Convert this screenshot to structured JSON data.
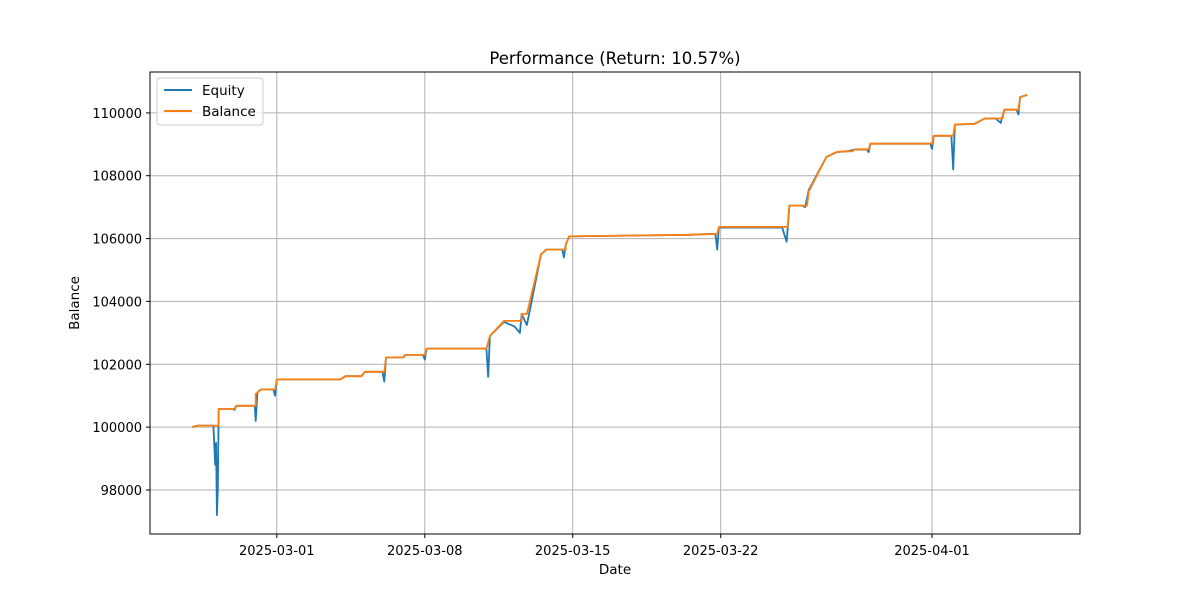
{
  "chart_data": {
    "type": "line",
    "title": "Performance (Return: 10.57%)",
    "xlabel": "Date",
    "ylabel": "Balance",
    "xlim": [
      "2025-02-23",
      "2025-04-08"
    ],
    "ylim": [
      96600,
      111300
    ],
    "x_ticks": [
      "2025-03-01",
      "2025-03-08",
      "2025-03-15",
      "2025-03-22",
      "2025-04-01"
    ],
    "y_ticks": [
      98000,
      100000,
      102000,
      104000,
      106000,
      108000,
      110000
    ],
    "grid": true,
    "legend": "top-left",
    "series": [
      {
        "name": "Equity",
        "color": "#1f77b4",
        "points": [
          [
            "2025-02-25T00:00",
            100000
          ],
          [
            "2025-02-25T06:00",
            100050
          ],
          [
            "2025-02-26T00:00",
            100050
          ],
          [
            "2025-02-26T02:00",
            98800
          ],
          [
            "2025-02-26T03:00",
            99500
          ],
          [
            "2025-02-26T04:00",
            97200
          ],
          [
            "2025-02-26T05:00",
            98000
          ],
          [
            "2025-02-26T06:00",
            100580
          ],
          [
            "2025-02-26T23:00",
            100580
          ],
          [
            "2025-02-27T00:00",
            100550
          ],
          [
            "2025-02-27T02:00",
            100680
          ],
          [
            "2025-02-27T23:00",
            100680
          ],
          [
            "2025-02-28T00:00",
            100200
          ],
          [
            "2025-02-28T02:00",
            101100
          ],
          [
            "2025-02-28T06:00",
            101200
          ],
          [
            "2025-02-28T20:00",
            101200
          ],
          [
            "2025-02-28T22:00",
            101000
          ],
          [
            "2025-03-01T00:00",
            101520
          ],
          [
            "2025-03-04T00:00",
            101520
          ],
          [
            "2025-03-04T06:00",
            101620
          ],
          [
            "2025-03-05T00:00",
            101620
          ],
          [
            "2025-03-05T04:00",
            101760
          ],
          [
            "2025-03-06T00:00",
            101760
          ],
          [
            "2025-03-06T02:00",
            101450
          ],
          [
            "2025-03-06T04:00",
            102220
          ],
          [
            "2025-03-06T23:00",
            102220
          ],
          [
            "2025-03-07T02:00",
            102300
          ],
          [
            "2025-03-07T22:00",
            102300
          ],
          [
            "2025-03-08T00:00",
            102150
          ],
          [
            "2025-03-08T02:00",
            102500
          ],
          [
            "2025-03-10T22:00",
            102500
          ],
          [
            "2025-03-11T00:00",
            101600
          ],
          [
            "2025-03-11T02:00",
            102900
          ],
          [
            "2025-03-11T18:00",
            103350
          ],
          [
            "2025-03-12T06:00",
            103200
          ],
          [
            "2025-03-12T12:00",
            103000
          ],
          [
            "2025-03-12T14:00",
            103600
          ],
          [
            "2025-03-12T20:00",
            103250
          ],
          [
            "2025-03-13T12:00",
            105500
          ],
          [
            "2025-03-13T18:00",
            105650
          ],
          [
            "2025-03-14T12:00",
            105650
          ],
          [
            "2025-03-14T14:00",
            105400
          ],
          [
            "2025-03-14T16:00",
            105800
          ],
          [
            "2025-03-14T20:00",
            106070
          ],
          [
            "2025-03-20T12:00",
            106120
          ],
          [
            "2025-03-21T12:00",
            106150
          ],
          [
            "2025-03-21T18:00",
            106150
          ],
          [
            "2025-03-21T20:00",
            105650
          ],
          [
            "2025-03-21T22:00",
            106350
          ],
          [
            "2025-03-24T22:00",
            106350
          ],
          [
            "2025-03-25T00:00",
            106150
          ],
          [
            "2025-03-25T03:00",
            105900
          ],
          [
            "2025-03-25T06:00",
            107050
          ],
          [
            "2025-03-25T20:00",
            107050
          ],
          [
            "2025-03-26T00:00",
            107000
          ],
          [
            "2025-03-26T04:00",
            107550
          ],
          [
            "2025-03-27T00:00",
            108600
          ],
          [
            "2025-03-27T12:00",
            108750
          ],
          [
            "2025-03-28T00:00",
            108780
          ],
          [
            "2025-03-28T08:00",
            108830
          ],
          [
            "2025-03-28T22:00",
            108830
          ],
          [
            "2025-03-29T00:00",
            108750
          ],
          [
            "2025-03-29T02:00",
            109020
          ],
          [
            "2025-03-31T22:00",
            109020
          ],
          [
            "2025-04-01T00:00",
            108850
          ],
          [
            "2025-04-01T02:00",
            109270
          ],
          [
            "2025-04-01T22:00",
            109270
          ],
          [
            "2025-04-02T00:00",
            108200
          ],
          [
            "2025-04-02T02:00",
            109630
          ],
          [
            "2025-04-03T00:00",
            109650
          ],
          [
            "2025-04-03T12:00",
            109820
          ],
          [
            "2025-04-04T00:00",
            109820
          ],
          [
            "2025-04-04T06:00",
            109680
          ],
          [
            "2025-04-04T10:00",
            110100
          ],
          [
            "2025-04-05T00:00",
            110100
          ],
          [
            "2025-04-05T02:00",
            109950
          ],
          [
            "2025-04-05T04:00",
            110500
          ],
          [
            "2025-04-05T12:00",
            110570
          ]
        ]
      },
      {
        "name": "Balance",
        "color": "#ff7f0e",
        "points": [
          [
            "2025-02-25T00:00",
            100000
          ],
          [
            "2025-02-25T06:00",
            100050
          ],
          [
            "2025-02-26T06:00",
            100050
          ],
          [
            "2025-02-26T06:00",
            100580
          ],
          [
            "2025-02-27T00:00",
            100580
          ],
          [
            "2025-02-27T02:00",
            100680
          ],
          [
            "2025-02-28T00:00",
            100680
          ],
          [
            "2025-02-28T00:00",
            101050
          ],
          [
            "2025-02-28T06:00",
            101200
          ],
          [
            "2025-02-28T22:00",
            101200
          ],
          [
            "2025-03-01T00:00",
            101520
          ],
          [
            "2025-03-04T00:00",
            101520
          ],
          [
            "2025-03-04T06:00",
            101620
          ],
          [
            "2025-03-05T00:00",
            101620
          ],
          [
            "2025-03-05T04:00",
            101760
          ],
          [
            "2025-03-06T02:00",
            101760
          ],
          [
            "2025-03-06T04:00",
            102220
          ],
          [
            "2025-03-07T00:00",
            102220
          ],
          [
            "2025-03-07T02:00",
            102300
          ],
          [
            "2025-03-08T00:00",
            102300
          ],
          [
            "2025-03-08T02:00",
            102500
          ],
          [
            "2025-03-10T22:00",
            102500
          ],
          [
            "2025-03-11T02:00",
            102900
          ],
          [
            "2025-03-11T18:00",
            103380
          ],
          [
            "2025-03-12T14:00",
            103380
          ],
          [
            "2025-03-12T14:00",
            103600
          ],
          [
            "2025-03-12T20:00",
            103600
          ],
          [
            "2025-03-13T12:00",
            105500
          ],
          [
            "2025-03-13T18:00",
            105650
          ],
          [
            "2025-03-14T16:00",
            105650
          ],
          [
            "2025-03-14T16:00",
            105800
          ],
          [
            "2025-03-14T20:00",
            106070
          ],
          [
            "2025-03-20T12:00",
            106120
          ],
          [
            "2025-03-21T20:00",
            106150
          ],
          [
            "2025-03-21T22:00",
            106370
          ],
          [
            "2025-03-25T04:00",
            106370
          ],
          [
            "2025-03-25T06:00",
            107050
          ],
          [
            "2025-03-26T02:00",
            107050
          ],
          [
            "2025-03-26T04:00",
            107500
          ],
          [
            "2025-03-27T00:00",
            108600
          ],
          [
            "2025-03-27T12:00",
            108760
          ],
          [
            "2025-03-28T06:00",
            108780
          ],
          [
            "2025-03-28T08:00",
            108840
          ],
          [
            "2025-03-29T00:00",
            108840
          ],
          [
            "2025-03-29T02:00",
            109020
          ],
          [
            "2025-04-01T00:00",
            109020
          ],
          [
            "2025-04-01T02:00",
            109270
          ],
          [
            "2025-04-02T00:00",
            109270
          ],
          [
            "2025-04-02T02:00",
            109630
          ],
          [
            "2025-04-03T00:00",
            109650
          ],
          [
            "2025-04-03T12:00",
            109820
          ],
          [
            "2025-04-04T08:00",
            109820
          ],
          [
            "2025-04-04T10:00",
            110100
          ],
          [
            "2025-04-05T02:00",
            110100
          ],
          [
            "2025-04-05T04:00",
            110500
          ],
          [
            "2025-04-05T12:00",
            110570
          ]
        ]
      }
    ]
  }
}
